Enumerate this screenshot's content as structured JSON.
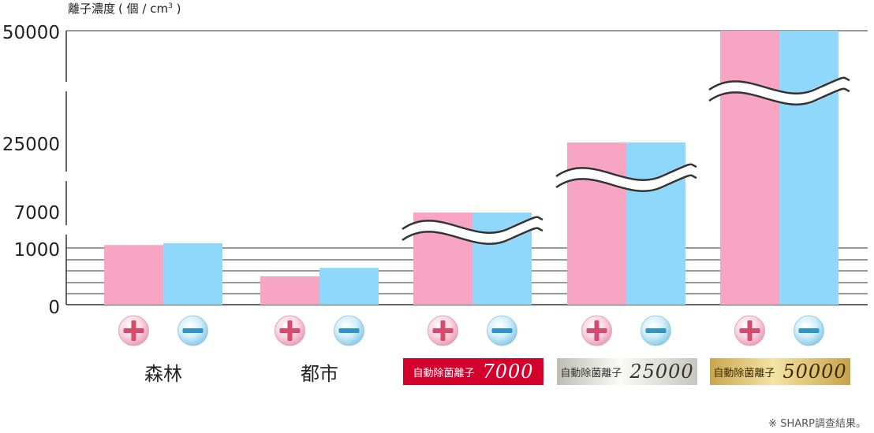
{
  "chart_data": {
    "type": "bar",
    "title": "",
    "ylabel": "離子濃度",
    "ylabel_unit": "( 個 / cm",
    "ylabel_sup": "3",
    "ylabel_close": " )",
    "ylim": [
      0,
      50000
    ],
    "y_scale": "broken",
    "yticks": [
      "50000",
      "25000",
      "7000",
      "1000",
      "0"
    ],
    "grid": true,
    "legend": "none",
    "categories": [
      "森林",
      "都市",
      "自動除菌離子 7000",
      "自動除菌離子 25000",
      "自動除菌離子 50000"
    ],
    "series": [
      {
        "ion": "positive",
        "icon": "plus-ion-icon",
        "color": "#f8a5c4",
        "values": [
          1500,
          500,
          7000,
          25000,
          50000
        ]
      },
      {
        "ion": "negative",
        "icon": "minus-ion-icon",
        "color": "#8fd8fb",
        "values": [
          1800,
          650,
          7000,
          25000,
          50000
        ]
      }
    ]
  },
  "labels": {
    "forest": "森林",
    "city": "都市",
    "badges": [
      {
        "label": "自動除菌離子",
        "number": "7000"
      },
      {
        "label": "自動除菌離子",
        "number": "25000"
      },
      {
        "label": "自動除菌離子",
        "number": "50000"
      }
    ]
  },
  "footnote": "※ SHARP調查結果。"
}
